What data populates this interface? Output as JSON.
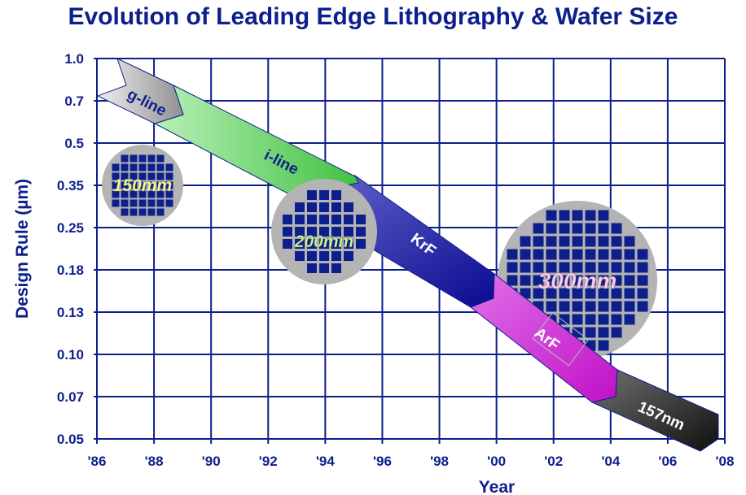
{
  "title": "Evolution of Leading Edge Lithography & Wafer Size",
  "chart_data": {
    "type": "roadmap",
    "xlabel": "Year",
    "ylabel": "Design Rule (µm)",
    "x_ticks": [
      "'86",
      "'88",
      "'90",
      "'92",
      "'94",
      "'96",
      "'98",
      "'00",
      "'02",
      "'04",
      "'06",
      "'08"
    ],
    "y_ticks": [
      "1.0",
      "0.7",
      "0.5",
      "0.35",
      "0.25",
      "0.18",
      "0.13",
      "0.10",
      "0.07",
      "0.05"
    ],
    "grid": true,
    "bands": [
      {
        "name": "g-line",
        "start_year": 1986,
        "end_year": 1989,
        "color": "#c8c8c8"
      },
      {
        "name": "i-line",
        "start_year": 1989,
        "end_year": 1995,
        "color": "#55d055"
      },
      {
        "name": "KrF",
        "start_year": 1995,
        "end_year": 2000,
        "color": "#1a1a9a"
      },
      {
        "name": "ArF",
        "start_year": 2000,
        "end_year": 2004,
        "color": "#d020d0"
      },
      {
        "name": "157nm",
        "start_year": 2004,
        "end_year": 2008,
        "color": "#222222"
      }
    ],
    "wafers": [
      {
        "label": "150mm",
        "year": 1988,
        "label_color": "#ffff80"
      },
      {
        "label": "200mm",
        "year": 1994,
        "label_color": "#c8ff90"
      },
      {
        "label": "300mm",
        "year": 2003,
        "label_color": "#ffc8f0"
      }
    ]
  }
}
